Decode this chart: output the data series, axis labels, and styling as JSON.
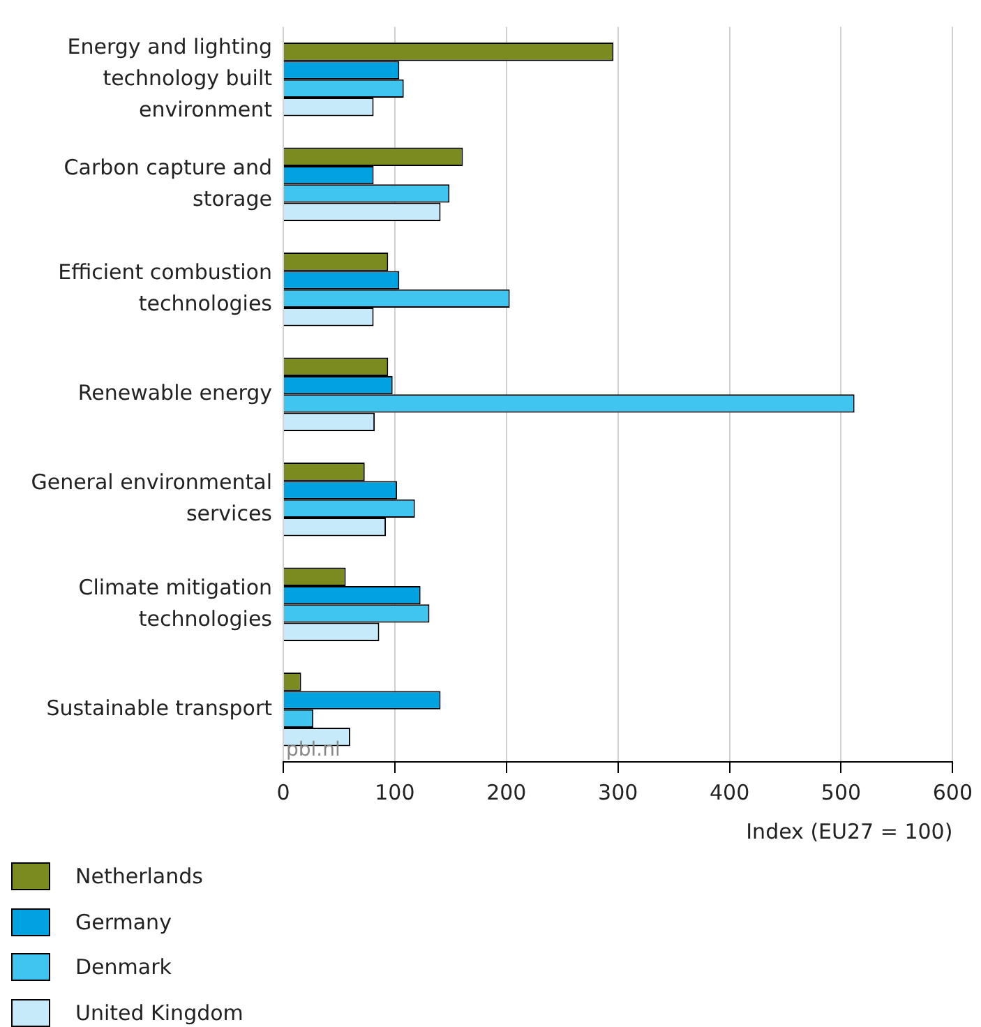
{
  "chart_data": {
    "type": "bar",
    "orientation": "horizontal",
    "categories": [
      "Energy and lighting technology built environment",
      "Carbon capture and storage",
      "Efficient combustion technologies",
      "Renewable energy",
      "General environmental services",
      "Climate mitigation technologies",
      "Sustainable transport"
    ],
    "series": [
      {
        "name": "Netherlands",
        "color": "#7b8b1f",
        "values": [
          296,
          161,
          94,
          94,
          73,
          56,
          16
        ]
      },
      {
        "name": "Germany",
        "color": "#00a3e0",
        "values": [
          104,
          81,
          104,
          98,
          102,
          123,
          141
        ]
      },
      {
        "name": "Denmark",
        "color": "#40c4f0",
        "values": [
          108,
          149,
          203,
          512,
          118,
          131,
          27
        ]
      },
      {
        "name": "United Kingdom",
        "color": "#c6eafa",
        "values": [
          81,
          141,
          81,
          82,
          92,
          86,
          60
        ]
      }
    ],
    "xlabel": "Index (EU27 = 100)",
    "xlim": [
      0,
      600
    ],
    "xticks": [
      0,
      100,
      200,
      300,
      400,
      500,
      600
    ],
    "grid": "x",
    "legend": "bottom left",
    "annotations": [
      "pbl.nl"
    ]
  }
}
